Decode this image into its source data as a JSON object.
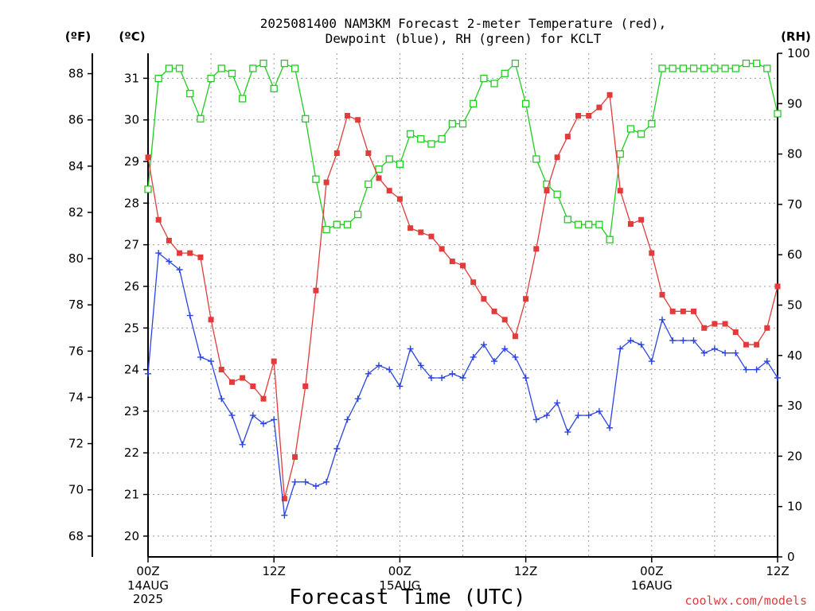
{
  "chart_data": {
    "type": "line",
    "title_line1": "2025081400 NAM3KM Forecast 2-meter Temperature (red),",
    "title_line2": "Dewpoint (blue), RH (green) for KCLT",
    "xlabel": "Forecast Time (UTC)",
    "credit": "coolwx.com/models",
    "axis_units": {
      "fahrenheit": "(ºF)",
      "celsius": "(ºC)",
      "rh": "(RH)"
    },
    "x_hours": [
      0,
      1,
      2,
      3,
      4,
      5,
      6,
      7,
      8,
      9,
      10,
      11,
      12,
      13,
      14,
      15,
      16,
      17,
      18,
      19,
      20,
      21,
      22,
      23,
      24,
      25,
      26,
      27,
      28,
      29,
      30,
      31,
      32,
      33,
      34,
      35,
      36,
      37,
      38,
      39,
      40,
      41,
      42,
      43,
      44,
      45,
      46,
      47,
      48,
      49,
      50,
      51,
      52,
      53,
      54,
      55,
      56,
      57,
      58,
      59,
      60
    ],
    "x_range_hours": [
      0,
      60
    ],
    "x_ticks": [
      {
        "hour": 0,
        "label": "00Z",
        "sub1": "14AUG",
        "sub2": "2025"
      },
      {
        "hour": 12,
        "label": "12Z",
        "sub1": "",
        "sub2": ""
      },
      {
        "hour": 24,
        "label": "00Z",
        "sub1": "15AUG",
        "sub2": ""
      },
      {
        "hour": 36,
        "label": "12Z",
        "sub1": "",
        "sub2": ""
      },
      {
        "hour": 48,
        "label": "00Z",
        "sub1": "16AUG",
        "sub2": ""
      },
      {
        "hour": 60,
        "label": "12Z",
        "sub1": "",
        "sub2": ""
      }
    ],
    "celsius_range": [
      19.5,
      31.6
    ],
    "celsius_ticks": [
      20,
      21,
      22,
      23,
      24,
      25,
      26,
      27,
      28,
      29,
      30,
      31
    ],
    "fahrenheit_ticks": [
      68,
      70,
      72,
      74,
      76,
      78,
      80,
      82,
      84,
      86,
      88
    ],
    "rh_range": [
      0,
      100
    ],
    "rh_ticks": [
      0,
      10,
      20,
      30,
      40,
      50,
      60,
      70,
      80,
      90,
      100
    ],
    "grid": true,
    "series": [
      {
        "name": "Temperature",
        "unit": "C",
        "color": "#e23b3b",
        "marker": "filled-square",
        "values": [
          29.1,
          27.6,
          27.1,
          26.8,
          26.8,
          26.7,
          25.2,
          24.0,
          23.7,
          23.8,
          23.6,
          23.3,
          24.2,
          20.9,
          21.9,
          23.6,
          25.9,
          28.5,
          29.2,
          30.1,
          30.0,
          29.2,
          28.6,
          28.3,
          28.1,
          27.4,
          27.3,
          27.2,
          26.9,
          26.6,
          26.5,
          26.1,
          25.7,
          25.4,
          25.2,
          24.8,
          25.7,
          26.9,
          28.3,
          29.1,
          29.6,
          30.1,
          30.1,
          30.3,
          30.6,
          28.3,
          27.5,
          27.6,
          26.8,
          25.8,
          25.4,
          25.4,
          25.4,
          25.0,
          25.1,
          25.1,
          24.9,
          24.6,
          24.6,
          25.0,
          26.0
        ]
      },
      {
        "name": "Dewpoint",
        "unit": "C",
        "color": "#2b44e0",
        "marker": "plus",
        "values": [
          23.9,
          26.8,
          26.6,
          26.4,
          25.3,
          24.3,
          24.2,
          23.3,
          22.9,
          22.2,
          22.9,
          22.7,
          22.8,
          20.5,
          21.3,
          21.3,
          21.2,
          21.3,
          22.1,
          22.8,
          23.3,
          23.9,
          24.1,
          24.0,
          23.6,
          24.5,
          24.1,
          23.8,
          23.8,
          23.9,
          23.8,
          24.3,
          24.6,
          24.2,
          24.5,
          24.3,
          23.8,
          22.8,
          22.9,
          23.2,
          22.5,
          22.9,
          22.9,
          23.0,
          22.6,
          24.5,
          24.7,
          24.6,
          24.2,
          25.2,
          24.7,
          24.7,
          24.7,
          24.4,
          24.5,
          24.4,
          24.4,
          24.0,
          24.0,
          24.2,
          23.8
        ]
      },
      {
        "name": "RH",
        "unit": "%",
        "color": "#22cc22",
        "marker": "open-square",
        "values": [
          73,
          95,
          97,
          97,
          92,
          87,
          95,
          97,
          96,
          91,
          97,
          98,
          93,
          98,
          97,
          87,
          75,
          65,
          66,
          66,
          68,
          74,
          77,
          79,
          78,
          84,
          83,
          82,
          83,
          86,
          86,
          90,
          95,
          94,
          96,
          98,
          90,
          79,
          74,
          72,
          67,
          66,
          66,
          66,
          63,
          80,
          85,
          84,
          86,
          97,
          97,
          97,
          97,
          97,
          97,
          97,
          97,
          98,
          98,
          97,
          88
        ]
      }
    ]
  }
}
